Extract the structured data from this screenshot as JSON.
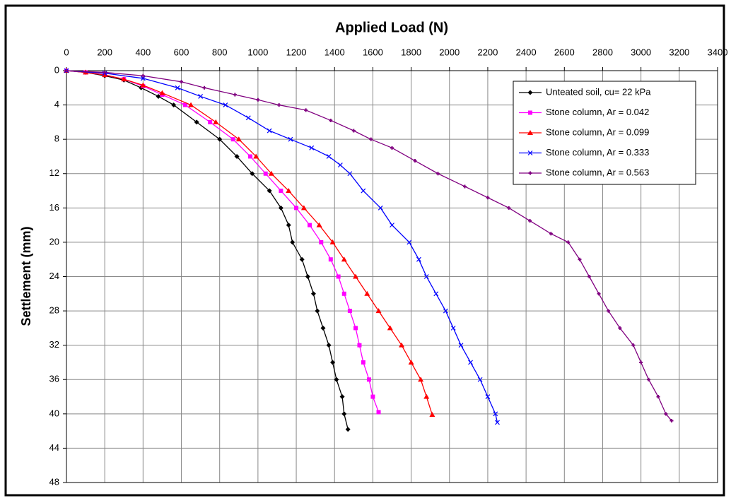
{
  "chart_data": {
    "type": "line",
    "x_label": "Applied Load (N)",
    "y_label": "Settlement (mm)",
    "xlim": [
      0,
      3400
    ],
    "xticks": [
      0,
      200,
      400,
      600,
      800,
      1000,
      1200,
      1400,
      1600,
      1800,
      2000,
      2200,
      2400,
      2600,
      2800,
      3000,
      3200,
      3400
    ],
    "ylim": [
      0,
      48
    ],
    "yticks": [
      0,
      4,
      8,
      12,
      16,
      20,
      24,
      28,
      32,
      36,
      40,
      44,
      48
    ],
    "y_inverted": true,
    "x_axis_position": "top",
    "grid": true,
    "legend": "upper right",
    "series": [
      {
        "name": "Unteated soil, cu= 22 kPa",
        "color": "#000000",
        "marker": "diamond",
        "x": [
          0,
          100,
          200,
          300,
          390,
          480,
          560,
          680,
          800,
          890,
          970,
          1060,
          1120,
          1160,
          1180,
          1230,
          1260,
          1290,
          1310,
          1340,
          1370,
          1390,
          1410,
          1440,
          1450,
          1470
        ],
        "values": [
          0,
          0.2,
          0.6,
          1.1,
          2,
          3,
          4,
          6,
          8,
          10,
          12,
          14,
          16,
          18,
          20,
          22,
          24,
          26,
          28,
          30,
          32,
          34,
          36,
          38,
          40,
          41.8
        ]
      },
      {
        "name": "Stone column, Ar = 0.042",
        "color": "#ff00ff",
        "marker": "square",
        "x": [
          0,
          100,
          200,
          300,
          400,
          500,
          620,
          750,
          870,
          960,
          1040,
          1120,
          1200,
          1270,
          1330,
          1380,
          1420,
          1450,
          1480,
          1510,
          1530,
          1550,
          1580,
          1600,
          1630
        ],
        "values": [
          0,
          0.2,
          0.5,
          1,
          1.8,
          2.8,
          4,
          6,
          8,
          10,
          12,
          14,
          16,
          18,
          20,
          22,
          24,
          26,
          28,
          30,
          32,
          34,
          36,
          38,
          39.8
        ]
      },
      {
        "name": "Stone column, Ar = 0.099",
        "color": "#ff0000",
        "marker": "triangle",
        "x": [
          0,
          100,
          200,
          300,
          400,
          500,
          650,
          780,
          900,
          990,
          1070,
          1160,
          1240,
          1320,
          1390,
          1450,
          1510,
          1570,
          1630,
          1690,
          1750,
          1800,
          1850,
          1880,
          1910
        ],
        "values": [
          0,
          0.2,
          0.5,
          1,
          1.7,
          2.6,
          4,
          6,
          8,
          10,
          12,
          14,
          16,
          18,
          20,
          22,
          24,
          26,
          28,
          30,
          32,
          34,
          36,
          38,
          40.1
        ]
      },
      {
        "name": "Stone column, Ar = 0.333",
        "color": "#0000ff",
        "marker": "x",
        "x": [
          0,
          200,
          400,
          580,
          700,
          830,
          950,
          1060,
          1170,
          1280,
          1370,
          1430,
          1480,
          1550,
          1640,
          1700,
          1790,
          1840,
          1880,
          1930,
          1980,
          2020,
          2060,
          2110,
          2160,
          2200,
          2240,
          2250
        ],
        "values": [
          0,
          0.3,
          0.9,
          2,
          3,
          4,
          5.5,
          7,
          8,
          9,
          10,
          11,
          12,
          14,
          16,
          18,
          20,
          22,
          24,
          26,
          28,
          30,
          32,
          34,
          36,
          38,
          40,
          41
        ]
      },
      {
        "name": "Stone column, Ar = 0.563",
        "color": "#800080",
        "marker": "plus",
        "x": [
          0,
          200,
          400,
          600,
          720,
          880,
          1000,
          1110,
          1250,
          1380,
          1500,
          1590,
          1700,
          1820,
          1940,
          2080,
          2200,
          2310,
          2420,
          2530,
          2620,
          2680,
          2730,
          2780,
          2830,
          2890,
          2960,
          3000,
          3040,
          3090,
          3130,
          3160
        ],
        "values": [
          0,
          0.2,
          0.6,
          1.3,
          2,
          2.8,
          3.4,
          4,
          4.6,
          5.8,
          7,
          8,
          9,
          10.5,
          12,
          13.5,
          14.8,
          16,
          17.5,
          19,
          20,
          22,
          24,
          26,
          28,
          30,
          32,
          34,
          36,
          38,
          40,
          40.8
        ]
      }
    ]
  }
}
